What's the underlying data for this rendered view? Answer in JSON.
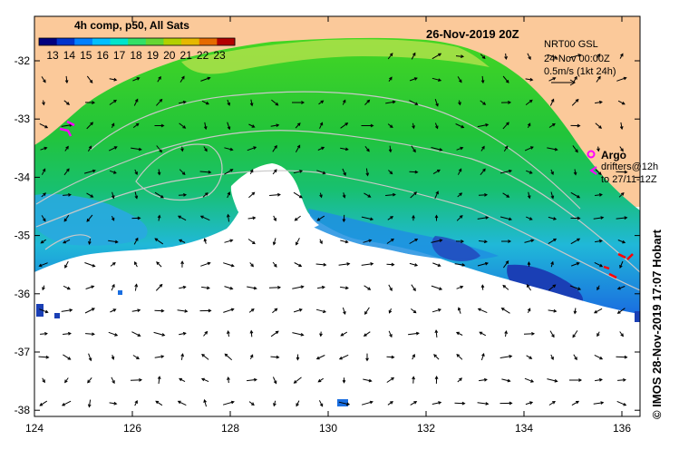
{
  "colorbar": {
    "title": "4h comp, p50, All Sats",
    "labels": [
      "13",
      "14",
      "15",
      "16",
      "17",
      "18",
      "19",
      "20",
      "21",
      "22",
      "23"
    ],
    "colors": [
      "#00007f",
      "#0033cc",
      "#0080ff",
      "#00bfff",
      "#00e5cc",
      "#33e066",
      "#66d633",
      "#b3d000",
      "#e6b800",
      "#e66a00",
      "#b30000"
    ]
  },
  "header": {
    "date_title": "26-Nov-2019 20Z",
    "model": "NRT00 GSL",
    "model_time": "24-Nov 00:00Z",
    "scale_label": "0.5m/s (1kt 24h)"
  },
  "legend": {
    "argo_label": "Argo",
    "drifters_line1": "drifters@12h",
    "drifters_line2": "to 27/11-12Z"
  },
  "axes": {
    "x_ticks": [
      "124",
      "126",
      "128",
      "130",
      "132",
      "134",
      "136"
    ],
    "y_ticks": [
      "-32",
      "-33",
      "-34",
      "-35",
      "-36",
      "-37",
      "-38"
    ]
  },
  "credit": "© IMOS 28-Nov-2019 17:07 Hobart",
  "colors": {
    "land": "#fbc99a",
    "no_data": "#ffffff",
    "drifter_magenta": "#ff00ff",
    "drifter_red": "#ff0000"
  }
}
